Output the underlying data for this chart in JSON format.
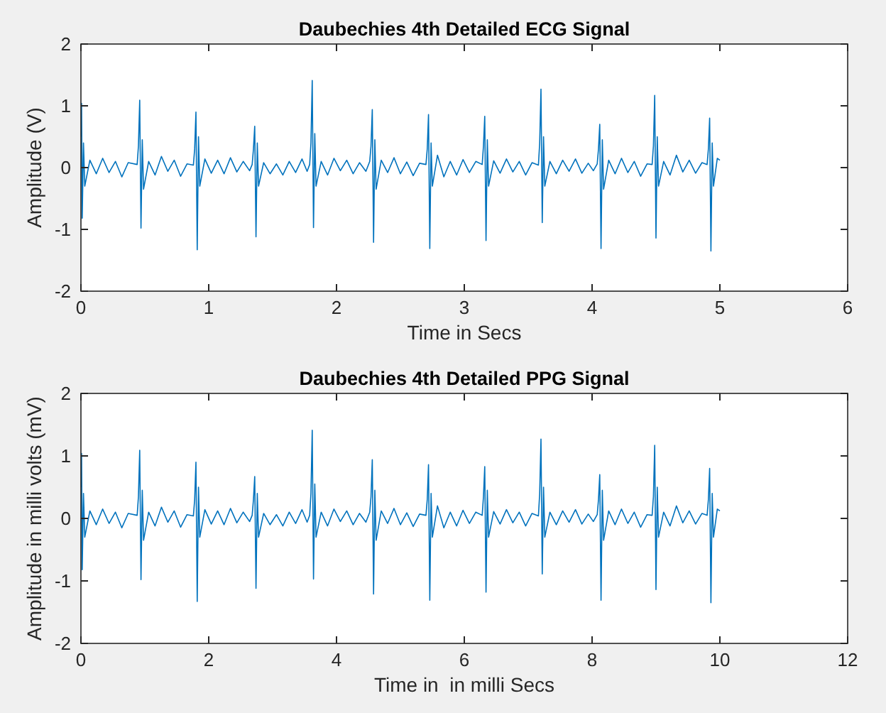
{
  "chart_data": [
    {
      "type": "line",
      "title": "Daubechies 4th Detailed ECG Signal",
      "xlabel": "Time in Secs",
      "ylabel": "Amplitude (V)",
      "xlim": [
        0,
        6
      ],
      "xticks": [
        0,
        1,
        2,
        3,
        4,
        5,
        6
      ],
      "ylim": [
        -2,
        2
      ],
      "yticks": [
        -2,
        -1,
        0,
        1,
        2
      ],
      "grid": false,
      "marker": "none",
      "line_style": "solid",
      "series": [
        {
          "color": "#0072bd",
          "x": [
            0,
            0.005,
            0.01,
            0.02,
            0.03,
            0.07,
            0.12,
            0.17,
            0.22,
            0.27,
            0.32,
            0.37,
            0.44,
            0.45,
            0.46,
            0.47,
            0.48,
            0.49,
            0.53,
            0.58,
            0.63,
            0.68,
            0.73,
            0.78,
            0.83,
            0.88,
            0.89,
            0.9,
            0.91,
            0.92,
            0.93,
            0.97,
            1.02,
            1.07,
            1.12,
            1.17,
            1.22,
            1.27,
            1.32,
            1.34,
            1.35,
            1.36,
            1.37,
            1.38,
            1.39,
            1.43,
            1.48,
            1.53,
            1.58,
            1.63,
            1.68,
            1.73,
            1.77,
            1.79,
            1.8,
            1.81,
            1.82,
            1.83,
            1.84,
            1.88,
            1.93,
            1.98,
            2.03,
            2.08,
            2.13,
            2.18,
            2.23,
            2.26,
            2.27,
            2.28,
            2.29,
            2.3,
            2.31,
            2.35,
            2.4,
            2.45,
            2.5,
            2.55,
            2.6,
            2.65,
            2.7,
            2.71,
            2.72,
            2.73,
            2.74,
            2.75,
            2.79,
            2.84,
            2.89,
            2.94,
            2.99,
            3.04,
            3.09,
            3.14,
            3.15,
            3.16,
            3.17,
            3.18,
            3.19,
            3.23,
            3.28,
            3.33,
            3.38,
            3.43,
            3.48,
            3.53,
            3.58,
            3.59,
            3.6,
            3.61,
            3.62,
            3.63,
            3.67,
            3.72,
            3.77,
            3.82,
            3.87,
            3.92,
            3.97,
            4.01,
            4.04,
            4.05,
            4.06,
            4.07,
            4.08,
            4.09,
            4.13,
            4.18,
            4.23,
            4.28,
            4.33,
            4.38,
            4.43,
            4.47,
            4.48,
            4.49,
            4.5,
            4.51,
            4.52,
            4.56,
            4.61,
            4.66,
            4.71,
            4.76,
            4.81,
            4.86,
            4.9,
            4.91,
            4.92,
            4.93,
            4.94,
            4.95,
            4.98,
            5.0
          ],
          "values": [
            0.5,
            1.04,
            -0.82,
            0.4,
            -0.3,
            0.12,
            -0.1,
            0.15,
            -0.08,
            0.1,
            -0.15,
            0.08,
            0.05,
            0.35,
            1.09,
            -0.98,
            0.45,
            -0.35,
            0.1,
            -0.12,
            0.18,
            -0.06,
            0.12,
            -0.14,
            0.06,
            0.04,
            0.3,
            0.9,
            -1.33,
            0.5,
            -0.3,
            0.14,
            -0.09,
            0.12,
            -0.1,
            0.16,
            -0.07,
            0.1,
            -0.05,
            0.05,
            0.3,
            0.67,
            -1.12,
            0.4,
            -0.3,
            0.08,
            -0.1,
            0.06,
            -0.12,
            0.1,
            -0.08,
            0.14,
            -0.06,
            0.05,
            0.4,
            1.41,
            -0.97,
            0.55,
            -0.3,
            0.1,
            -0.12,
            0.15,
            -0.05,
            0.12,
            -0.1,
            0.08,
            -0.06,
            0.1,
            0.35,
            0.94,
            -1.21,
            0.45,
            -0.35,
            0.12,
            -0.08,
            0.16,
            -0.1,
            0.09,
            -0.13,
            0.07,
            0.05,
            0.3,
            0.86,
            -1.31,
            0.4,
            -0.3,
            0.2,
            -0.15,
            0.1,
            -0.12,
            0.13,
            -0.08,
            0.1,
            0.05,
            0.35,
            0.83,
            -1.18,
            0.45,
            -0.3,
            0.11,
            -0.09,
            0.14,
            -0.07,
            0.1,
            -0.12,
            0.08,
            0.04,
            0.4,
            1.27,
            -0.89,
            0.5,
            -0.3,
            0.1,
            -0.1,
            0.12,
            -0.06,
            0.14,
            -0.09,
            0.07,
            -0.05,
            0.06,
            0.3,
            0.7,
            -1.31,
            0.45,
            -0.35,
            0.12,
            -0.1,
            0.15,
            -0.08,
            0.1,
            -0.14,
            0.06,
            0.05,
            0.35,
            1.17,
            -1.14,
            0.5,
            -0.3,
            0.1,
            -0.12,
            0.2,
            -0.07,
            0.12,
            -0.09,
            0.08,
            0.05,
            0.3,
            0.8,
            -1.35,
            0.4,
            -0.3,
            0.15,
            0.12
          ]
        }
      ]
    },
    {
      "type": "line",
      "title": "Daubechies 4th Detailed PPG Signal",
      "xlabel": "Time in  in milli Secs",
      "ylabel": "Amplitude in milli volts (mV)",
      "xlim": [
        0,
        12
      ],
      "xticks": [
        0,
        2,
        4,
        6,
        8,
        10,
        12
      ],
      "ylim": [
        -2,
        2
      ],
      "yticks": [
        -2,
        -1,
        0,
        1,
        2
      ],
      "grid": false,
      "marker": "none",
      "line_style": "solid",
      "series": [
        {
          "color": "#0072bd",
          "x": [
            0,
            0.01,
            0.02,
            0.04,
            0.06,
            0.14,
            0.24,
            0.34,
            0.44,
            0.54,
            0.64,
            0.74,
            0.88,
            0.9,
            0.92,
            0.94,
            0.96,
            0.98,
            1.06,
            1.16,
            1.26,
            1.36,
            1.46,
            1.56,
            1.66,
            1.76,
            1.78,
            1.8,
            1.82,
            1.84,
            1.86,
            1.94,
            2.04,
            2.14,
            2.24,
            2.34,
            2.44,
            2.54,
            2.64,
            2.68,
            2.7,
            2.72,
            2.74,
            2.76,
            2.78,
            2.86,
            2.96,
            3.06,
            3.16,
            3.26,
            3.36,
            3.46,
            3.54,
            3.58,
            3.6,
            3.62,
            3.64,
            3.66,
            3.68,
            3.76,
            3.86,
            3.96,
            4.06,
            4.16,
            4.26,
            4.36,
            4.46,
            4.52,
            4.54,
            4.56,
            4.58,
            4.6,
            4.62,
            4.7,
            4.8,
            4.9,
            5,
            5.1,
            5.2,
            5.3,
            5.4,
            5.42,
            5.44,
            5.46,
            5.48,
            5.5,
            5.58,
            5.68,
            5.78,
            5.88,
            5.98,
            6.08,
            6.18,
            6.28,
            6.3,
            6.32,
            6.34,
            6.36,
            6.38,
            6.46,
            6.56,
            6.66,
            6.76,
            6.86,
            6.96,
            7.06,
            7.16,
            7.18,
            7.2,
            7.22,
            7.24,
            7.26,
            7.34,
            7.44,
            7.54,
            7.64,
            7.74,
            7.84,
            7.94,
            8.02,
            8.08,
            8.1,
            8.12,
            8.14,
            8.16,
            8.18,
            8.26,
            8.36,
            8.46,
            8.56,
            8.66,
            8.76,
            8.86,
            8.94,
            8.96,
            8.98,
            9,
            9.02,
            9.04,
            9.12,
            9.22,
            9.32,
            9.42,
            9.52,
            9.62,
            9.72,
            9.8,
            9.82,
            9.84,
            9.86,
            9.88,
            9.9,
            9.96,
            10
          ],
          "values": [
            0.5,
            1.04,
            -0.82,
            0.4,
            -0.3,
            0.12,
            -0.1,
            0.15,
            -0.08,
            0.1,
            -0.15,
            0.08,
            0.05,
            0.35,
            1.09,
            -0.98,
            0.45,
            -0.35,
            0.1,
            -0.12,
            0.18,
            -0.06,
            0.12,
            -0.14,
            0.06,
            0.04,
            0.3,
            0.9,
            -1.33,
            0.5,
            -0.3,
            0.14,
            -0.09,
            0.12,
            -0.1,
            0.16,
            -0.07,
            0.1,
            -0.05,
            0.05,
            0.3,
            0.67,
            -1.12,
            0.4,
            -0.3,
            0.08,
            -0.1,
            0.06,
            -0.12,
            0.1,
            -0.08,
            0.14,
            -0.06,
            0.05,
            0.4,
            1.41,
            -0.97,
            0.55,
            -0.3,
            0.1,
            -0.12,
            0.15,
            -0.05,
            0.12,
            -0.1,
            0.08,
            -0.06,
            0.1,
            0.35,
            0.94,
            -1.21,
            0.45,
            -0.35,
            0.12,
            -0.08,
            0.16,
            -0.1,
            0.09,
            -0.13,
            0.07,
            0.05,
            0.3,
            0.86,
            -1.31,
            0.4,
            -0.3,
            0.2,
            -0.15,
            0.1,
            -0.12,
            0.13,
            -0.08,
            0.1,
            0.05,
            0.35,
            0.83,
            -1.18,
            0.45,
            -0.3,
            0.11,
            -0.09,
            0.14,
            -0.07,
            0.1,
            -0.12,
            0.08,
            0.04,
            0.4,
            1.27,
            -0.89,
            0.5,
            -0.3,
            0.1,
            -0.1,
            0.12,
            -0.06,
            0.14,
            -0.09,
            0.07,
            -0.05,
            0.06,
            0.3,
            0.7,
            -1.31,
            0.45,
            -0.35,
            0.12,
            -0.1,
            0.15,
            -0.08,
            0.1,
            -0.14,
            0.06,
            0.05,
            0.35,
            1.17,
            -1.14,
            0.5,
            -0.3,
            0.1,
            -0.12,
            0.2,
            -0.07,
            0.12,
            -0.09,
            0.08,
            0.05,
            0.3,
            0.8,
            -1.35,
            0.4,
            -0.3,
            0.15,
            0.12
          ]
        }
      ]
    }
  ]
}
